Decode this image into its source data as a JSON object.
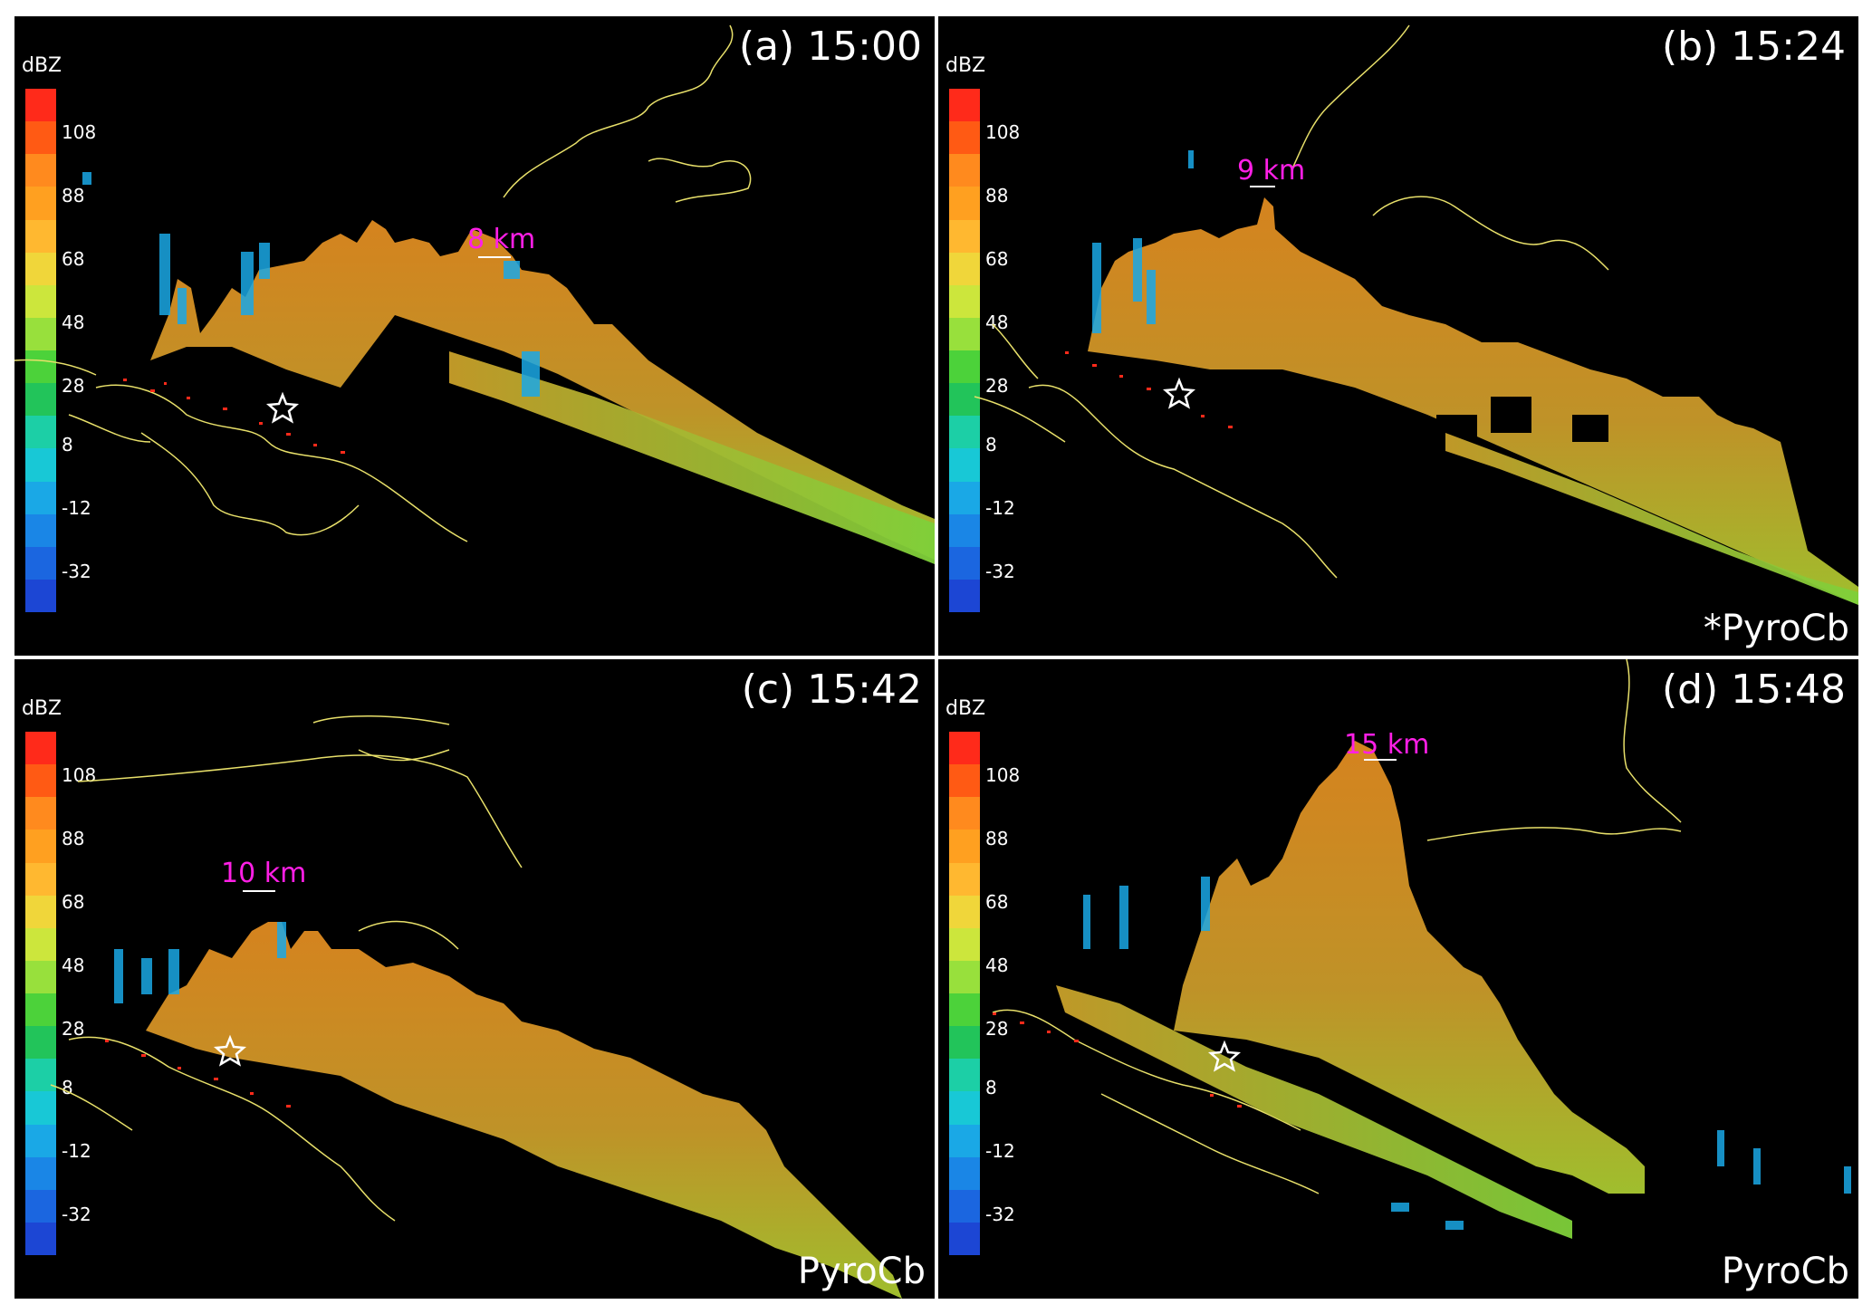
{
  "colorbar": {
    "unit": "dBZ",
    "ticks": [
      "108",
      "88",
      "68",
      "48",
      "28",
      "8",
      "-12",
      "-32"
    ],
    "colors": [
      "#ff2a1a",
      "#ff5a14",
      "#ff8a1e",
      "#ffa020",
      "#ffb830",
      "#f0d63a",
      "#cce63c",
      "#98e03c",
      "#4cd23a",
      "#22c45a",
      "#1ccfa6",
      "#18c8d6",
      "#1aa8e6",
      "#1a86e6",
      "#1b66e0",
      "#1c46d4"
    ]
  },
  "panels": [
    {
      "title": "(a) 15:00",
      "height_label": "8 km",
      "pyro_label": ""
    },
    {
      "title": "(b) 15:24",
      "height_label": "9 km",
      "pyro_label": "*PyroCb"
    },
    {
      "title": "(c) 15:42",
      "height_label": "10 km",
      "pyro_label": "PyroCb"
    },
    {
      "title": "(d) 15:48",
      "height_label": "15 km",
      "pyro_label": "PyroCb"
    }
  ],
  "colors": {
    "background": "#000000",
    "coastline": "#e8e06a",
    "height_label": "#ff1fe6",
    "fire_pixels": "#ff2a1a",
    "echo_core": "#d98c24",
    "echo_mid": "#a4cc32",
    "echo_edge": "#1aa8e6"
  },
  "icons": [
    "star-icon"
  ]
}
